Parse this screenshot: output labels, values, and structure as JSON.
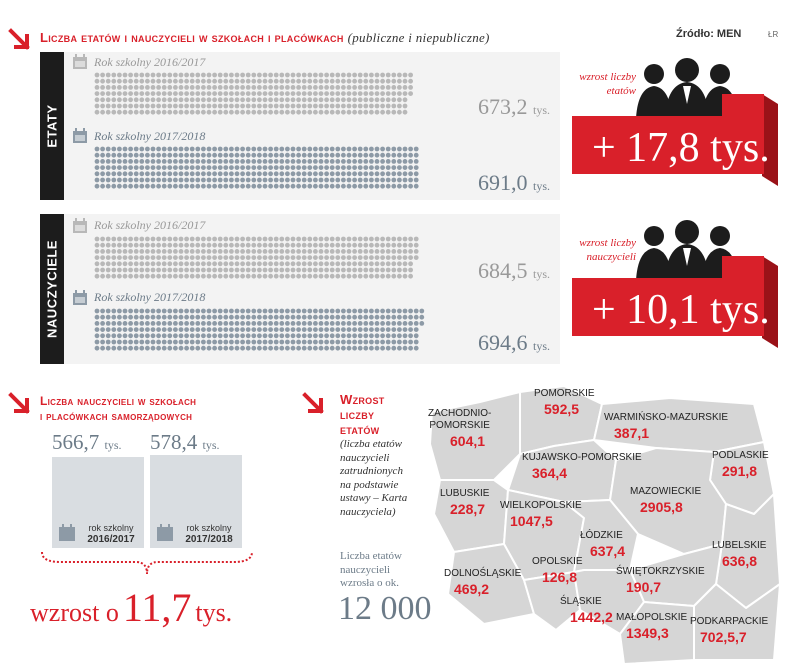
{
  "header": {
    "title": "Liczba etatów i nauczycieli w szkołach i placówkach",
    "subtitle": "(publiczne i niepubliczne)",
    "source": "Źródło: MEN",
    "credit": "ŁR"
  },
  "etaty": {
    "tab_label": "ETATY",
    "year1_label": "Rok szkolny 2016/2017",
    "year1_value": "673,2",
    "year2_label": "Rok szkolny 2017/2018",
    "year2_value": "691,0",
    "unit": "tys.",
    "growth_label": "wzrost liczby etatów",
    "growth_value": "+ 17,8 tys."
  },
  "nauczyciele": {
    "tab_label": "NAUCZYCIELE",
    "year1_label": "Rok szkolny 2016/2017",
    "year1_value": "684,5",
    "year2_label": "Rok szkolny 2017/2018",
    "year2_value": "694,6",
    "unit": "tys.",
    "growth_label": "wzrost liczby nauczycieli",
    "growth_value": "+ 10,1 tys."
  },
  "samorzadowe": {
    "title_line1": "Liczba nauczycieli w szkołach",
    "title_line2": "i placówkach samorządowych",
    "bar1_value": "566,7",
    "bar2_value": "578,4",
    "unit": "tys.",
    "bar1_label_top": "rok szkolny",
    "bar1_label_bottom": "2016/2017",
    "bar2_label_top": "rok szkolny",
    "bar2_label_bottom": "2017/2018",
    "growth_prefix": "wzrost o",
    "growth_number": "11,7",
    "growth_unit": "tys."
  },
  "wzrost_etatow": {
    "title_line1": "Wzrost",
    "title_line2": "liczby",
    "title_line3": "etatów",
    "desc_line1": "(liczba etatów",
    "desc_line2": "nauczycieli",
    "desc_line3": "zatrudnionych",
    "desc_line4": "na podstawie",
    "desc_line5": "ustawy – Karta",
    "desc_line6": "nauczyciela)",
    "summary_line1": "Liczba etatów",
    "summary_line2": "nauczycieli",
    "summary_line3": "wzrosła o ok.",
    "summary_value": "12 000"
  },
  "regions": [
    {
      "name1": "ZACHODNIO-",
      "name2": "POMORSKIE",
      "value": "604,1"
    },
    {
      "name1": "POMORSKIE",
      "name2": "",
      "value": "592,5"
    },
    {
      "name1": "WARMIŃSKO-MAZURSKIE",
      "name2": "",
      "value": "387,1"
    },
    {
      "name1": "KUJAWSKO-POMORSKIE",
      "name2": "",
      "value": "364,4"
    },
    {
      "name1": "PODLASKIE",
      "name2": "",
      "value": "291,8"
    },
    {
      "name1": "LUBUSKIE",
      "name2": "",
      "value": "228,7"
    },
    {
      "name1": "WIELKOPOLSKIE",
      "name2": "",
      "value": "1047,5"
    },
    {
      "name1": "MAZOWIECKIE",
      "name2": "",
      "value": "2905,8"
    },
    {
      "name1": "ŁÓDZKIE",
      "name2": "",
      "value": "637,4"
    },
    {
      "name1": "LUBELSKIE",
      "name2": "",
      "value": "636,8"
    },
    {
      "name1": "DOLNOŚLĄSKIE",
      "name2": "",
      "value": "469,2"
    },
    {
      "name1": "OPOLSKIE",
      "name2": "",
      "value": "126,8"
    },
    {
      "name1": "ŚWIĘTOKRZYSKIE",
      "name2": "",
      "value": "190,7"
    },
    {
      "name1": "ŚLĄSKIE",
      "name2": "",
      "value": "1442,2"
    },
    {
      "name1": "MAŁOPOLSKIE",
      "name2": "",
      "value": "1349,3"
    },
    {
      "name1": "PODKARPACKIE",
      "name2": "",
      "value": "702,5,7"
    }
  ],
  "chart_data": [
    {
      "type": "bar",
      "title": "Liczba etatów i nauczycieli w szkołach i placówkach",
      "categories": [
        "Rok szkolny 2016/2017",
        "Rok szkolny 2017/2018"
      ],
      "series": [
        {
          "name": "ETATY",
          "values": [
            673.2,
            691.0
          ]
        },
        {
          "name": "NAUCZYCIELE",
          "values": [
            684.5,
            694.6
          ]
        }
      ]
    },
    {
      "type": "bar",
      "title": "Liczba nauczycieli w szkołach i placówkach samorządowych",
      "categories": [
        "2016/2017",
        "2017/2018"
      ],
      "values": [
        566.7,
        578.4
      ]
    }
  ],
  "colors": {
    "accent": "#d9202a",
    "dark": "#1c1c1c",
    "dot_old": "#b8b8b8",
    "dot_new": "#8d9aa6",
    "map": "#d6d6d6"
  }
}
